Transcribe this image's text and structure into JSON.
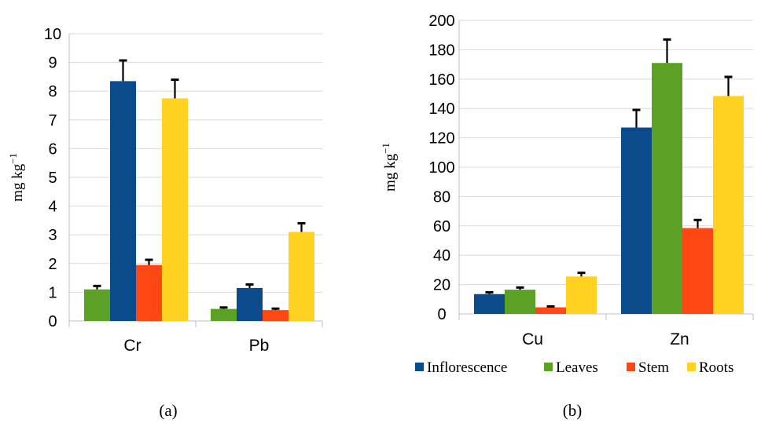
{
  "colors": {
    "Inflorescence": "#0B4A8B",
    "Leaves": "#5AA125",
    "Stem": "#FF4713",
    "Roots": "#FFD221",
    "grid": "#d9d9d9",
    "axis": "#bfbfbf",
    "error": "#000000"
  },
  "legend": {
    "placement": "bottom",
    "items": [
      "Inflorescence",
      "Leaves",
      "Stem",
      "Roots"
    ]
  },
  "chart_data": [
    {
      "panel_label": "(a)",
      "type": "bar",
      "ylabel": "mg kg−1",
      "ylim": [
        0,
        10
      ],
      "yticks": [
        0,
        1,
        2,
        3,
        4,
        5,
        6,
        7,
        8,
        9,
        10
      ],
      "grid": true,
      "groups": [
        {
          "category": "Cr",
          "bars": [
            {
              "series": "Leaves",
              "value": 1.1,
              "error": 0.12
            },
            {
              "series": "Inflorescence",
              "value": 8.35,
              "error": 0.72
            },
            {
              "series": "Stem",
              "value": 1.95,
              "error": 0.18
            },
            {
              "series": "Roots",
              "value": 7.75,
              "error": 0.65
            }
          ]
        },
        {
          "category": "Pb",
          "bars": [
            {
              "series": "Leaves",
              "value": 0.42,
              "error": 0.05
            },
            {
              "series": "Inflorescence",
              "value": 1.15,
              "error": 0.12
            },
            {
              "series": "Stem",
              "value": 0.38,
              "error": 0.05
            },
            {
              "series": "Roots",
              "value": 3.1,
              "error": 0.3
            }
          ]
        }
      ]
    },
    {
      "panel_label": "(b)",
      "type": "bar",
      "ylabel": "mg kg−1",
      "ylim": [
        0,
        200
      ],
      "yticks": [
        0,
        20,
        40,
        60,
        80,
        100,
        120,
        140,
        160,
        180,
        200
      ],
      "grid": true,
      "groups": [
        {
          "category": "Cu",
          "bars": [
            {
              "series": "Inflorescence",
              "value": 13.5,
              "error": 1.2
            },
            {
              "series": "Leaves",
              "value": 16.5,
              "error": 1.5
            },
            {
              "series": "Stem",
              "value": 4.5,
              "error": 0.6
            },
            {
              "series": "Roots",
              "value": 25.5,
              "error": 2.5
            }
          ]
        },
        {
          "category": "Zn",
          "bars": [
            {
              "series": "Inflorescence",
              "value": 127,
              "error": 12
            },
            {
              "series": "Leaves",
              "value": 171,
              "error": 16
            },
            {
              "series": "Stem",
              "value": 58.5,
              "error": 5.5
            },
            {
              "series": "Roots",
              "value": 148.5,
              "error": 13
            }
          ]
        }
      ]
    }
  ]
}
